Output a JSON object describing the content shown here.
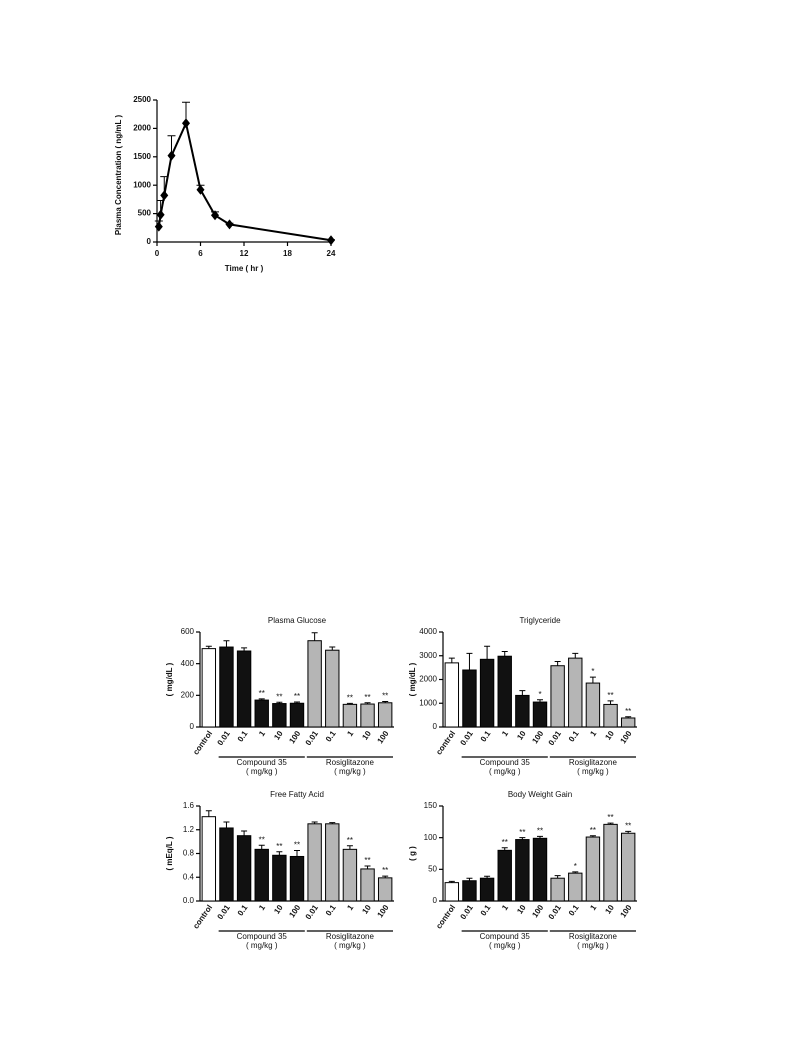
{
  "chart_data": [
    {
      "type": "line",
      "xlabel": "Time ( hr )",
      "ylabel": "Plasma Concentration ( ng/mL )",
      "x": [
        0.25,
        0.5,
        1,
        2,
        4,
        6,
        8,
        10,
        24
      ],
      "values": [
        270,
        480,
        820,
        1520,
        2090,
        920,
        470,
        310,
        30
      ],
      "errors": [
        100,
        250,
        330,
        350,
        370,
        80,
        60,
        20,
        10
      ],
      "color": "#000000",
      "xlim": [
        0,
        24
      ],
      "xticks": [
        0,
        6,
        12,
        18,
        24
      ],
      "ylim": [
        0,
        2500
      ],
      "yticks": [
        0,
        500,
        1000,
        1500,
        2000,
        2500
      ]
    },
    {
      "type": "bar",
      "title": "Plasma Glucose",
      "ylabel": "( mg/dL )",
      "categories": [
        "control",
        "0.01",
        "0.1",
        "1",
        "10",
        "100",
        "0.01",
        "0.1",
        "1",
        "10",
        "100"
      ],
      "values": [
        495,
        505,
        480,
        170,
        148,
        150,
        545,
        485,
        143,
        145,
        153
      ],
      "errors": [
        15,
        40,
        20,
        8,
        8,
        8,
        50,
        20,
        6,
        8,
        8
      ],
      "annotations": [
        null,
        null,
        null,
        "**",
        "**",
        "**",
        null,
        null,
        "**",
        "**",
        "**"
      ],
      "colors": [
        "#ffffff",
        "#111111",
        "#111111",
        "#111111",
        "#111111",
        "#111111",
        "#b5b5b5",
        "#b5b5b5",
        "#b5b5b5",
        "#b5b5b5",
        "#b5b5b5"
      ],
      "groups": [
        {
          "name": "Compound 35",
          "unit": "( mg/kg )"
        },
        {
          "name": "Rosiglitazone",
          "unit": "( mg/kg )"
        }
      ],
      "ylim": [
        0,
        600
      ],
      "yticks": [
        0,
        200,
        400,
        600
      ]
    },
    {
      "type": "bar",
      "title": "Triglyceride",
      "ylabel": "( mg/dL )",
      "categories": [
        "control",
        "0.01",
        "0.1",
        "1",
        "10",
        "100",
        "0.01",
        "0.1",
        "1",
        "10",
        "100"
      ],
      "values": [
        2700,
        2400,
        2850,
        2980,
        1330,
        1050,
        2580,
        2900,
        1850,
        950,
        380
      ],
      "errors": [
        200,
        700,
        550,
        200,
        200,
        100,
        180,
        200,
        250,
        150,
        50
      ],
      "annotations": [
        null,
        null,
        null,
        null,
        null,
        "*",
        null,
        null,
        "*",
        "**",
        "**"
      ],
      "colors": [
        "#ffffff",
        "#111111",
        "#111111",
        "#111111",
        "#111111",
        "#111111",
        "#b5b5b5",
        "#b5b5b5",
        "#b5b5b5",
        "#b5b5b5",
        "#b5b5b5"
      ],
      "groups": [
        {
          "name": "Compound 35",
          "unit": "( mg/kg )"
        },
        {
          "name": "Rosiglitazone",
          "unit": "( mg/kg )"
        }
      ],
      "ylim": [
        0,
        4000
      ],
      "yticks": [
        0,
        1000,
        2000,
        3000,
        4000
      ]
    },
    {
      "type": "bar",
      "title": "Free Fatty Acid",
      "ylabel": "( mEq/L )",
      "categories": [
        "control",
        "0.01",
        "0.1",
        "1",
        "10",
        "100",
        "0.01",
        "0.1",
        "1",
        "10",
        "100"
      ],
      "values": [
        1.42,
        1.23,
        1.1,
        0.87,
        0.77,
        0.75,
        1.3,
        1.3,
        0.87,
        0.54,
        0.39
      ],
      "errors": [
        0.1,
        0.1,
        0.08,
        0.07,
        0.06,
        0.1,
        0.03,
        0.02,
        0.06,
        0.05,
        0.03
      ],
      "annotations": [
        null,
        null,
        null,
        "**",
        "**",
        "**",
        null,
        null,
        "**",
        "**",
        "**"
      ],
      "colors": [
        "#ffffff",
        "#111111",
        "#111111",
        "#111111",
        "#111111",
        "#111111",
        "#b5b5b5",
        "#b5b5b5",
        "#b5b5b5",
        "#b5b5b5",
        "#b5b5b5"
      ],
      "groups": [
        {
          "name": "Compound 35",
          "unit": "( mg/kg )"
        },
        {
          "name": "Rosiglitazone",
          "unit": "( mg/kg )"
        }
      ],
      "ylim": [
        0,
        1.6
      ],
      "yticks": [
        {
          "value": 0,
          "label": "0.0"
        },
        0.4,
        0.8,
        1.2,
        1.6
      ]
    },
    {
      "type": "bar",
      "title": "Body Weight Gain",
      "ylabel": "( g )",
      "categories": [
        "control",
        "0.01",
        "0.1",
        "1",
        "10",
        "100",
        "0.01",
        "0.1",
        "1",
        "10",
        "100"
      ],
      "values": [
        29,
        32,
        36,
        80,
        97,
        99,
        36,
        44,
        101,
        121,
        107
      ],
      "errors": [
        2,
        4,
        3,
        4,
        3,
        3,
        4,
        2,
        2,
        2,
        3
      ],
      "annotations": [
        null,
        null,
        null,
        "**",
        "**",
        "**",
        null,
        "*",
        "**",
        "**",
        "**"
      ],
      "colors": [
        "#ffffff",
        "#111111",
        "#111111",
        "#111111",
        "#111111",
        "#111111",
        "#b5b5b5",
        "#b5b5b5",
        "#b5b5b5",
        "#b5b5b5",
        "#b5b5b5"
      ],
      "groups": [
        {
          "name": "Compound 35",
          "unit": "( mg/kg )"
        },
        {
          "name": "Rosiglitazone",
          "unit": "( mg/kg )"
        }
      ],
      "ylim": [
        0,
        150
      ],
      "yticks": [
        0,
        50,
        100,
        150
      ]
    }
  ]
}
